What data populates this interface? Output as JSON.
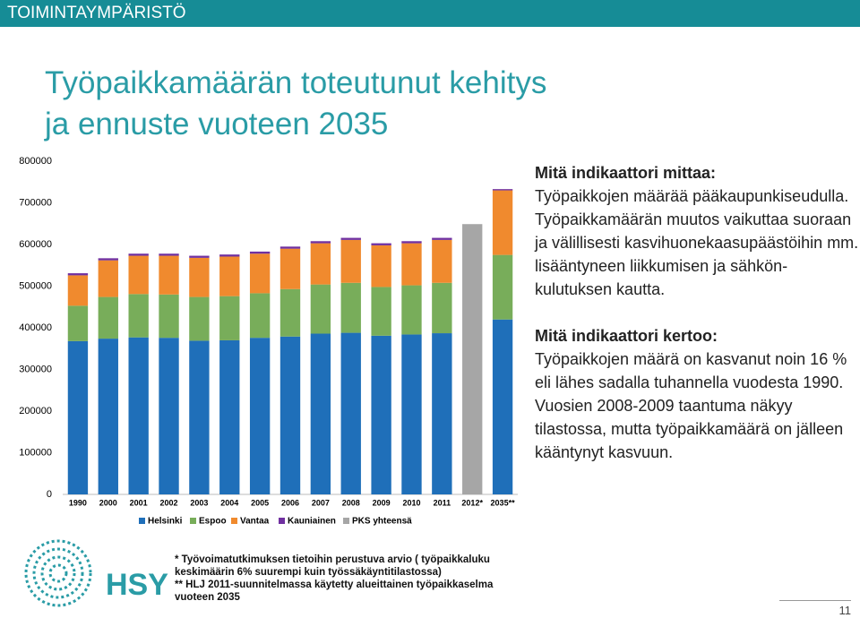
{
  "header": "TOIMINTAYMPÄRISTÖ",
  "title": [
    "Työpaikkamäärän toteutunut kehitys",
    "ja ennuste vuoteen 2035"
  ],
  "chart_data": {
    "type": "stacked_bar",
    "categories": [
      "1990",
      "2000",
      "2001",
      "2002",
      "2003",
      "2004",
      "2005",
      "2006",
      "2007",
      "2008",
      "2009",
      "2010",
      "2011",
      "2012*",
      "2035**"
    ],
    "series": [
      {
        "name": "Helsinki",
        "color": "#1f6fb9",
        "values": [
          368000,
          374000,
          377000,
          376000,
          369000,
          370000,
          376000,
          379000,
          386000,
          388000,
          381000,
          384000,
          387000,
          null,
          420000
        ]
      },
      {
        "name": "Espoo",
        "color": "#78ad5a",
        "values": [
          85000,
          100000,
          104000,
          104000,
          105000,
          106000,
          107000,
          114000,
          118000,
          120000,
          117000,
          118000,
          121000,
          null,
          155000
        ]
      },
      {
        "name": "Vantaa",
        "color": "#f08a2e",
        "values": [
          73000,
          88000,
          92000,
          93000,
          94000,
          95000,
          95000,
          97000,
          99000,
          103000,
          100000,
          101000,
          103000,
          null,
          155000
        ]
      },
      {
        "name": "Kauniainen",
        "color": "#7030a0",
        "values": [
          5000,
          5000,
          5000,
          5000,
          5000,
          5000,
          5000,
          5000,
          5000,
          5000,
          5000,
          5000,
          5000,
          null,
          3000
        ]
      },
      {
        "name": "PKS yhteensä",
        "color": "#a6a6a6",
        "values": [
          null,
          null,
          null,
          null,
          null,
          null,
          null,
          null,
          null,
          null,
          null,
          null,
          null,
          649000,
          null
        ]
      }
    ],
    "ylim": [
      0,
      800000
    ],
    "yticks": [
      0,
      100000,
      200000,
      300000,
      400000,
      500000,
      600000,
      700000,
      800000
    ],
    "grid": false
  },
  "blocks": [
    {
      "heading": "Mitä indikaattori mittaa:",
      "text": "Työpaikkojen määrää pääkaupunki­seudulla. Työpaikkamäärän muutos vaikuttaa suoraan ja välillisesti kasvihuonekaasupäästöihin mm. lisääntyneen liikkumisen ja sähkön­kulutuksen kautta."
    },
    {
      "heading": "Mitä indikaattori kertoo:",
      "text": "Työpaikkojen määrä on kasvanut noin 16 % eli lähes sadalla tuhannella vuodesta 1990. Vuosien 2008-2009 taantuma näkyy tilastossa, mutta työpaikkamäärä on jälleen kääntynyt kasvuun."
    }
  ],
  "footnotes": [
    "* Työvoimatutkimuksen tietoihin perustuva arvio ( työpaikkaluku keskimäärin 6% suurempi kuin työssäkäyntitilastossa)",
    "** HLJ 2011-suunnitelmassa käytetty alueittainen työpaikkaselma vuoteen 2035"
  ],
  "logo": "HSY",
  "page_number": "11"
}
